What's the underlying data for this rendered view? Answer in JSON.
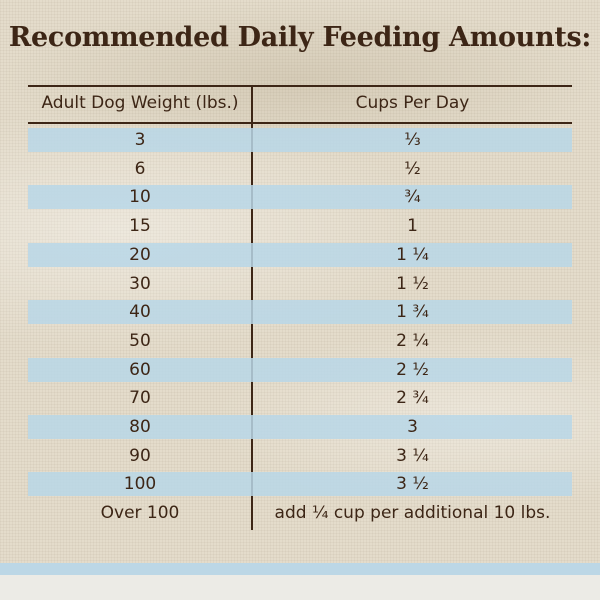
{
  "header": {
    "title": "Recommended Daily Feeding Amounts:"
  },
  "table": {
    "columns": [
      "Adult Dog Weight (lbs.)",
      "Cups Per Day"
    ],
    "rows": [
      [
        "3",
        "⅓"
      ],
      [
        "6",
        "½"
      ],
      [
        "10",
        "¾"
      ],
      [
        "15",
        "1"
      ],
      [
        "20",
        "1 ¼"
      ],
      [
        "30",
        "1 ½"
      ],
      [
        "40",
        "1 ¾"
      ],
      [
        "50",
        "2 ¼"
      ],
      [
        "60",
        "2 ½"
      ],
      [
        "70",
        "2 ¾"
      ],
      [
        "80",
        "3"
      ],
      [
        "90",
        "3 ¼"
      ],
      [
        "100",
        "3 ½"
      ],
      [
        "Over 100",
        "add ¼ cup per additional 10 lbs."
      ]
    ]
  }
}
